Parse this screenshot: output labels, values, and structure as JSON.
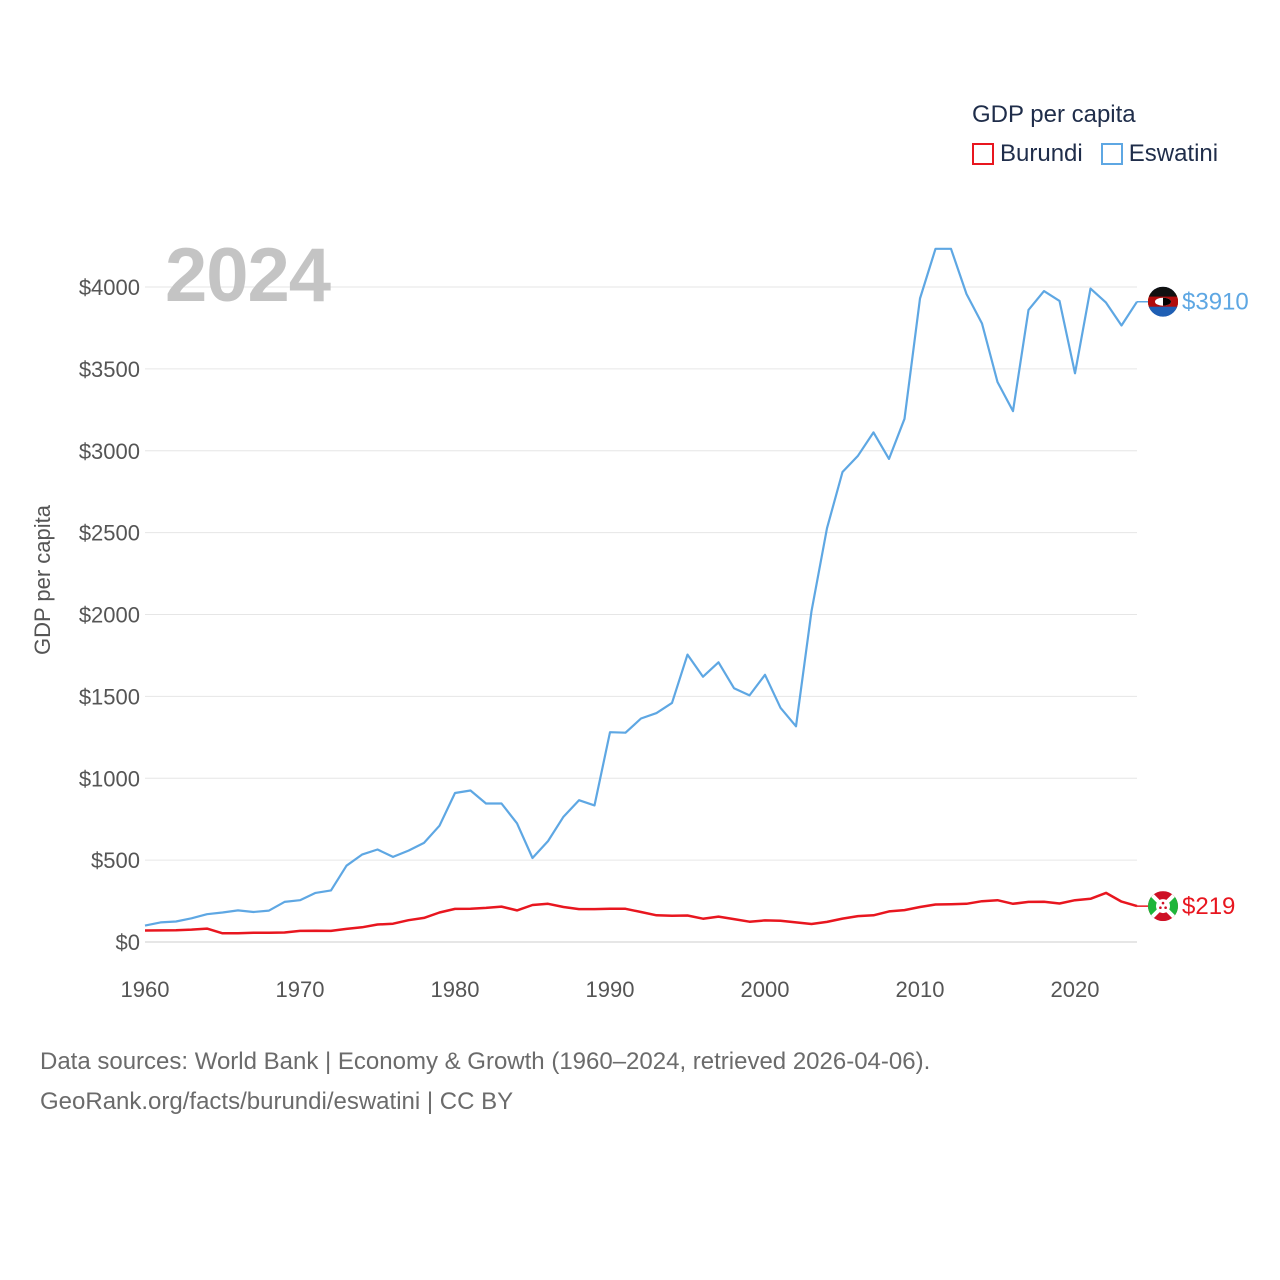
{
  "legend": {
    "title": "GDP per capita",
    "items": [
      {
        "name": "Burundi",
        "color": "#e8161f"
      },
      {
        "name": "Eswatini",
        "color": "#5ea7e3"
      }
    ]
  },
  "year_label": "2024",
  "footer": {
    "line1": "Data sources: World Bank | Economy & Growth (1960–2024, retrieved 2026-04-06).",
    "line2": "GeoRank.org/facts/burundi/eswatini | CC BY"
  },
  "chart_data": {
    "type": "line",
    "title": "",
    "xlabel": "",
    "ylabel": "GDP per capita",
    "xlim": [
      1960,
      2024
    ],
    "ylim": [
      0,
      4300
    ],
    "x_ticks": [
      1960,
      1970,
      1980,
      1990,
      2000,
      2010,
      2020
    ],
    "y_ticks": [
      0,
      500,
      1000,
      1500,
      2000,
      2500,
      3000,
      3500,
      4000
    ],
    "y_tick_labels": [
      "$0",
      "$500",
      "$1000",
      "$1500",
      "$2000",
      "$2500",
      "$3000",
      "$3500",
      "$4000"
    ],
    "grid": true,
    "legend_position": "top-right",
    "x": [
      1960,
      1961,
      1962,
      1963,
      1964,
      1965,
      1966,
      1967,
      1968,
      1969,
      1970,
      1971,
      1972,
      1973,
      1974,
      1975,
      1976,
      1977,
      1978,
      1979,
      1980,
      1981,
      1982,
      1983,
      1984,
      1985,
      1986,
      1987,
      1988,
      1989,
      1990,
      1991,
      1992,
      1993,
      1994,
      1995,
      1996,
      1997,
      1998,
      1999,
      2000,
      2001,
      2002,
      2003,
      2004,
      2005,
      2006,
      2007,
      2008,
      2009,
      2010,
      2011,
      2012,
      2013,
      2014,
      2015,
      2016,
      2017,
      2018,
      2019,
      2020,
      2021,
      2022,
      2023,
      2024
    ],
    "series": [
      {
        "name": "Burundi",
        "color": "#e8161f",
        "end_label": "$219",
        "values": [
          70,
          71,
          72,
          76,
          82,
          53,
          54,
          56,
          57,
          58,
          68,
          69,
          68,
          80,
          90,
          107,
          112,
          133,
          147,
          180,
          202,
          203,
          208,
          216,
          193,
          226,
          233,
          214,
          201,
          201,
          203,
          203,
          183,
          163,
          160,
          162,
          142,
          155,
          140,
          124,
          132,
          130,
          120,
          110,
          123,
          143,
          158,
          163,
          187,
          195,
          214,
          229,
          231,
          233,
          249,
          255,
          233,
          245,
          246,
          235,
          255,
          264,
          300,
          247,
          219
        ]
      },
      {
        "name": "Eswatini",
        "color": "#5ea7e3",
        "end_label": "$3910",
        "values": [
          100,
          120,
          125,
          145,
          170,
          180,
          193,
          183,
          192,
          245,
          255,
          300,
          315,
          466,
          534,
          565,
          520,
          558,
          605,
          710,
          910,
          925,
          846,
          846,
          725,
          513,
          616,
          765,
          866,
          834,
          1281,
          1278,
          1365,
          1398,
          1460,
          1755,
          1620,
          1708,
          1550,
          1506,
          1632,
          1430,
          1317,
          2020,
          2527,
          2870,
          2970,
          3112,
          2950,
          3195,
          3930,
          4233,
          4233,
          3957,
          3777,
          3420,
          3242,
          3860,
          3975,
          3915,
          3473,
          3990,
          3905,
          3765,
          3910
        ]
      }
    ]
  }
}
